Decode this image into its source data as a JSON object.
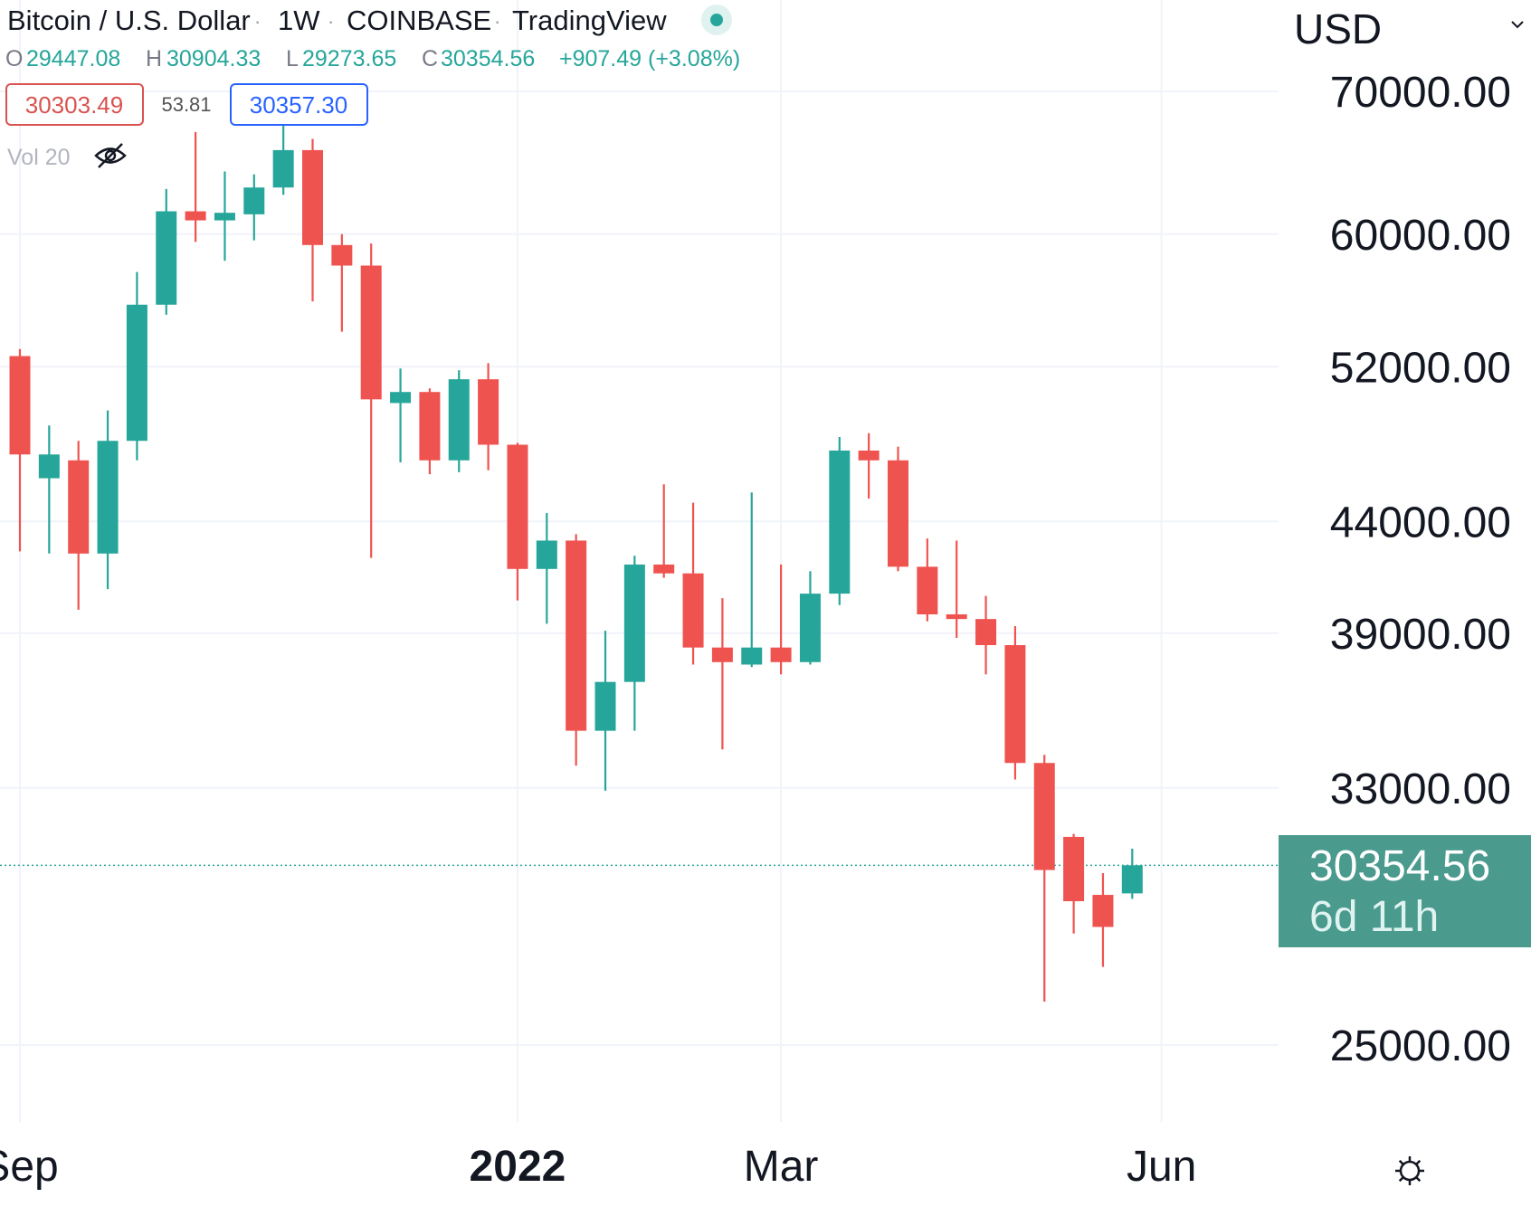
{
  "header": {
    "symbol_name": "Bitcoin / U.S. Dollar",
    "interval": "1W",
    "exchange": "COINBASE",
    "provider": "TradingView",
    "market_status_color": "#26a69a"
  },
  "ohlc": {
    "open_key": "O",
    "open": "29447.08",
    "high_key": "H",
    "high": "30904.33",
    "low_key": "L",
    "low": "29273.65",
    "close_key": "C",
    "close": "30354.56",
    "change": "+907.49 (+3.08%)"
  },
  "indicators": {
    "bid": "30303.49",
    "spread": "53.81",
    "ask": "30357.30"
  },
  "volume": {
    "label": "Vol 20",
    "visibility_icon": "eye-off-icon"
  },
  "price_scale": {
    "currency": "USD",
    "dropdown_icon": "chevron-down-icon",
    "last_price": "30354.56",
    "countdown": "6d 11h",
    "settings_icon": "gear-icon"
  },
  "chart_data": {
    "type": "candlestick",
    "title": "",
    "xlabel": "",
    "ylabel": "",
    "y_scale": "log",
    "ylim": [
      23700,
      72000
    ],
    "y_ticks": [
      {
        "label": "70000.00",
        "value": 70000
      },
      {
        "label": "60000.00",
        "value": 60000
      },
      {
        "label": "52000.00",
        "value": 52000
      },
      {
        "label": "44000.00",
        "value": 44000
      },
      {
        "label": "39000.00",
        "value": 39000
      },
      {
        "label": "33000.00",
        "value": 33000
      },
      {
        "label": "25000.00",
        "value": 25000
      }
    ],
    "x_ticks": [
      {
        "label": "Sep",
        "index": 0,
        "bold": false
      },
      {
        "label": "2022",
        "index": 17,
        "bold": true
      },
      {
        "label": "Mar",
        "index": 26,
        "bold": false
      },
      {
        "label": "Jun",
        "index": 39,
        "bold": false
      }
    ],
    "last_price": 30354.56,
    "grid": true,
    "up_color": "#26a69a",
    "down_color": "#ef5350",
    "candles": [
      {
        "o": 52600,
        "h": 53000,
        "l": 42600,
        "c": 47300
      },
      {
        "o": 46100,
        "h": 48800,
        "l": 42500,
        "c": 47300
      },
      {
        "o": 47000,
        "h": 48000,
        "l": 40000,
        "c": 42500
      },
      {
        "o": 42500,
        "h": 49600,
        "l": 40900,
        "c": 48000
      },
      {
        "o": 48000,
        "h": 57600,
        "l": 47000,
        "c": 55600
      },
      {
        "o": 55600,
        "h": 63000,
        "l": 55000,
        "c": 61500
      },
      {
        "o": 61500,
        "h": 67000,
        "l": 59500,
        "c": 60900
      },
      {
        "o": 60900,
        "h": 64200,
        "l": 58300,
        "c": 61400
      },
      {
        "o": 61300,
        "h": 64000,
        "l": 59600,
        "c": 63100
      },
      {
        "o": 63100,
        "h": 68800,
        "l": 62600,
        "c": 65700
      },
      {
        "o": 65700,
        "h": 66500,
        "l": 55800,
        "c": 59300
      },
      {
        "o": 59300,
        "h": 60000,
        "l": 54000,
        "c": 58000
      },
      {
        "o": 58000,
        "h": 59400,
        "l": 42300,
        "c": 50200
      },
      {
        "o": 50000,
        "h": 51900,
        "l": 46900,
        "c": 50600
      },
      {
        "o": 50600,
        "h": 50800,
        "l": 46300,
        "c": 47000
      },
      {
        "o": 47000,
        "h": 51800,
        "l": 46400,
        "c": 51300
      },
      {
        "o": 51300,
        "h": 52200,
        "l": 46500,
        "c": 47800
      },
      {
        "o": 47800,
        "h": 47900,
        "l": 40400,
        "c": 41800
      },
      {
        "o": 41800,
        "h": 44400,
        "l": 39400,
        "c": 43100
      },
      {
        "o": 43100,
        "h": 43400,
        "l": 33800,
        "c": 35100
      },
      {
        "o": 35100,
        "h": 39100,
        "l": 32900,
        "c": 37000
      },
      {
        "o": 37000,
        "h": 42400,
        "l": 35100,
        "c": 42000
      },
      {
        "o": 42000,
        "h": 45800,
        "l": 41400,
        "c": 41600
      },
      {
        "o": 41600,
        "h": 44900,
        "l": 37700,
        "c": 38400
      },
      {
        "o": 38400,
        "h": 40500,
        "l": 34400,
        "c": 37800
      },
      {
        "o": 37700,
        "h": 45400,
        "l": 37600,
        "c": 38400
      },
      {
        "o": 38400,
        "h": 42000,
        "l": 37300,
        "c": 37800
      },
      {
        "o": 37800,
        "h": 41700,
        "l": 37700,
        "c": 40700
      },
      {
        "o": 40700,
        "h": 48200,
        "l": 40200,
        "c": 47500
      },
      {
        "o": 47500,
        "h": 48400,
        "l": 45100,
        "c": 47000
      },
      {
        "o": 47000,
        "h": 47700,
        "l": 41700,
        "c": 41900
      },
      {
        "o": 41900,
        "h": 43200,
        "l": 39500,
        "c": 39800
      },
      {
        "o": 39800,
        "h": 43100,
        "l": 38800,
        "c": 39600
      },
      {
        "o": 39600,
        "h": 40600,
        "l": 37300,
        "c": 38500
      },
      {
        "o": 38500,
        "h": 39300,
        "l": 33300,
        "c": 33900
      },
      {
        "o": 33900,
        "h": 34200,
        "l": 26200,
        "c": 30200
      },
      {
        "o": 31300,
        "h": 31400,
        "l": 28200,
        "c": 29200
      },
      {
        "o": 29400,
        "h": 30100,
        "l": 27200,
        "c": 28400
      },
      {
        "o": 29447.08,
        "h": 30904.33,
        "l": 29273.65,
        "c": 30354.56
      }
    ]
  }
}
